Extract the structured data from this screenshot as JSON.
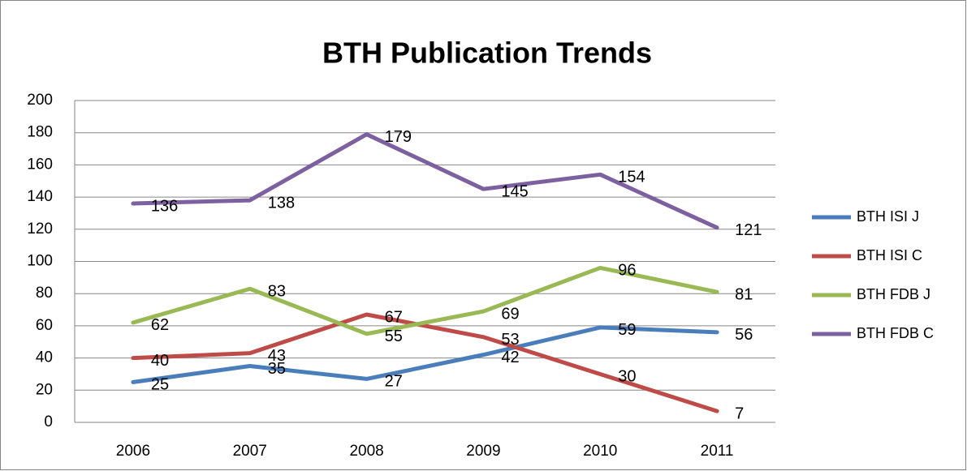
{
  "chart_data": {
    "type": "line",
    "title": "BTH Publication Trends",
    "categories": [
      "2006",
      "2007",
      "2008",
      "2009",
      "2010",
      "2011"
    ],
    "series": [
      {
        "name": "BTH ISI J",
        "color": "#4a7ebb",
        "values": [
          25,
          35,
          27,
          42,
          59,
          56
        ]
      },
      {
        "name": "BTH ISI C",
        "color": "#be4b48",
        "values": [
          40,
          43,
          67,
          53,
          30,
          7
        ]
      },
      {
        "name": "BTH FDB J",
        "color": "#98b954",
        "values": [
          62,
          83,
          55,
          69,
          96,
          81
        ]
      },
      {
        "name": "BTH FDB C",
        "color": "#7d60a0",
        "values": [
          136,
          138,
          179,
          145,
          154,
          121
        ]
      }
    ],
    "ylim": [
      0,
      200
    ],
    "yticks": [
      0,
      20,
      40,
      60,
      80,
      100,
      120,
      140,
      160,
      180,
      200
    ],
    "grid": true,
    "legend": "right"
  }
}
